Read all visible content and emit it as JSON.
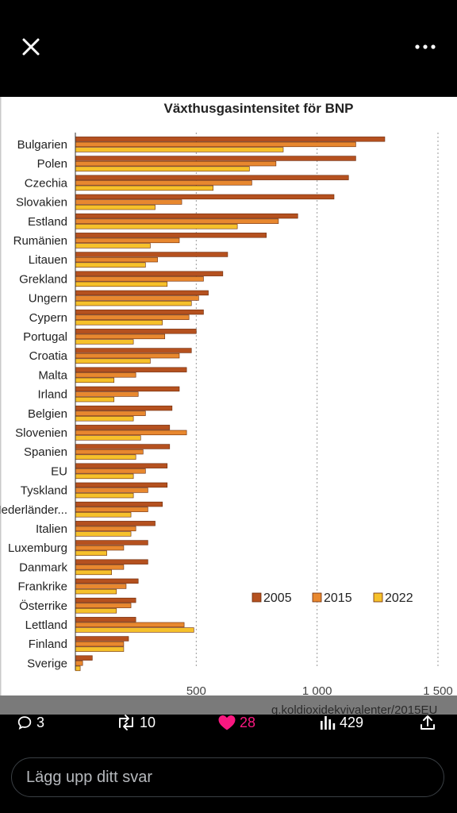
{
  "app": {
    "reply_placeholder": "Lägg upp ditt svar",
    "accent_like": "#f91880"
  },
  "actions": {
    "replies": "3",
    "reposts": "10",
    "likes": "28",
    "views": "429"
  },
  "icons": [
    "close-icon",
    "more-icon",
    "reply-icon",
    "repost-icon",
    "like-icon",
    "views-icon",
    "share-icon"
  ],
  "chart_data": {
    "type": "bar",
    "orientation": "horizontal",
    "title": "Växthusgasintensitet för BNP",
    "categories": [
      "Bulgarien",
      "Polen",
      "Czechia",
      "Slovakien",
      "Estland",
      "Rumänien",
      "Litauen",
      "Grekland",
      "Ungern",
      "Cypern",
      "Portugal",
      "Croatia",
      "Malta",
      "Irland",
      "Belgien",
      "Slovenien",
      "Spanien",
      "EU",
      "Tyskland",
      "Nederländer...",
      "Italien",
      "Luxemburg",
      "Danmark",
      "Frankrike",
      "Österrike",
      "Lettland",
      "Finland",
      "Sverige"
    ],
    "series": [
      {
        "name": "2005",
        "color": "#b5511f",
        "values": [
          1280,
          1160,
          1130,
          1070,
          920,
          790,
          630,
          610,
          550,
          530,
          500,
          480,
          460,
          430,
          400,
          390,
          390,
          380,
          380,
          360,
          330,
          300,
          300,
          260,
          250,
          250,
          220,
          70
        ]
      },
      {
        "name": "2015",
        "color": "#e8882f",
        "values": [
          1160,
          830,
          730,
          440,
          840,
          430,
          340,
          530,
          510,
          470,
          370,
          430,
          250,
          260,
          290,
          460,
          280,
          290,
          300,
          300,
          250,
          200,
          200,
          210,
          230,
          450,
          200,
          30
        ]
      },
      {
        "name": "2022",
        "color": "#f6c12b",
        "values": [
          860,
          720,
          570,
          330,
          670,
          310,
          290,
          380,
          480,
          360,
          240,
          310,
          160,
          160,
          240,
          270,
          250,
          240,
          240,
          230,
          230,
          130,
          150,
          170,
          170,
          490,
          200,
          20
        ]
      }
    ],
    "xlim": [
      0,
      1500
    ],
    "xticks": [
      "500",
      "1 000",
      "1 500"
    ],
    "xtick_values": [
      500,
      1000,
      1500
    ],
    "grid": "vertical dotted",
    "legend_position": "bottom-right",
    "footer_text": "g.koldioxidekvivalenter/2015EU"
  }
}
